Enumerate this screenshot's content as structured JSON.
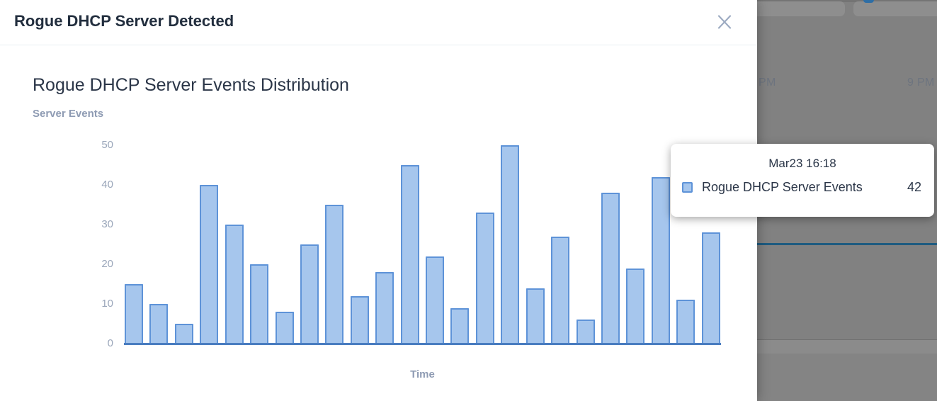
{
  "modal": {
    "title": "Rogue DHCP Server Detected"
  },
  "chart": {
    "title": "Rogue DHCP Server Events Distribution",
    "y_axis_label": "Server Events",
    "x_axis_label": "Time"
  },
  "chart_data": {
    "type": "bar",
    "title": "Rogue DHCP Server Events Distribution",
    "series_name": "Rogue DHCP Server Events",
    "values": [
      15,
      10,
      5,
      40,
      30,
      20,
      8,
      25,
      35,
      12,
      18,
      45,
      22,
      9,
      33,
      50,
      14,
      27,
      6,
      38,
      19,
      42,
      11,
      28
    ],
    "yticks": [
      0,
      10,
      20,
      30,
      40,
      50
    ],
    "ylim": [
      0,
      52
    ],
    "xlabel": "Time",
    "ylabel": "Server Events",
    "grid": false,
    "legend_position": "none",
    "bar_fill": "#a6c6ed",
    "bar_border": "#5e93d8",
    "hovered_point": {
      "label": "Mar23 16:18",
      "value": 42
    }
  },
  "tooltip": {
    "title": "Mar23 16:18",
    "series": "Rogue DHCP Server Events",
    "value": "42"
  },
  "background": {
    "time_labels": [
      "PM",
      "9 PM"
    ],
    "threshold_line_color": "#1e5b80"
  }
}
